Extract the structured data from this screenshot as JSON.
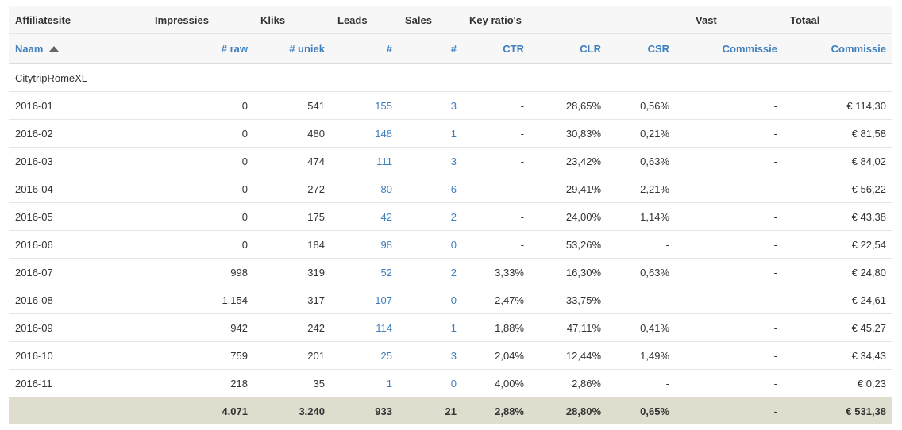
{
  "header_groups": [
    "Affiliatesite",
    "Impressies",
    "Kliks",
    "Leads",
    "Sales",
    "Key ratio's",
    "Vast",
    "Totaal"
  ],
  "columns": [
    "Naam",
    "# raw",
    "# uniek",
    "#",
    "#",
    "CTR",
    "CLR",
    "CSR",
    "Commissie",
    "Commissie"
  ],
  "group_name": "CitytripRomeXL",
  "rows": [
    [
      "2016-01",
      "0",
      "541",
      "155",
      "3",
      "-",
      "28,65%",
      "0,56%",
      "-",
      "€ 114,30"
    ],
    [
      "2016-02",
      "0",
      "480",
      "148",
      "1",
      "-",
      "30,83%",
      "0,21%",
      "-",
      "€ 81,58"
    ],
    [
      "2016-03",
      "0",
      "474",
      "111",
      "3",
      "-",
      "23,42%",
      "0,63%",
      "-",
      "€ 84,02"
    ],
    [
      "2016-04",
      "0",
      "272",
      "80",
      "6",
      "-",
      "29,41%",
      "2,21%",
      "-",
      "€ 56,22"
    ],
    [
      "2016-05",
      "0",
      "175",
      "42",
      "2",
      "-",
      "24,00%",
      "1,14%",
      "-",
      "€ 43,38"
    ],
    [
      "2016-06",
      "0",
      "184",
      "98",
      "0",
      "-",
      "53,26%",
      "-",
      "-",
      "€ 22,54"
    ],
    [
      "2016-07",
      "998",
      "319",
      "52",
      "2",
      "3,33%",
      "16,30%",
      "0,63%",
      "-",
      "€ 24,80"
    ],
    [
      "2016-08",
      "1.154",
      "317",
      "107",
      "0",
      "2,47%",
      "33,75%",
      "-",
      "-",
      "€ 24,61"
    ],
    [
      "2016-09",
      "942",
      "242",
      "114",
      "1",
      "1,88%",
      "47,11%",
      "0,41%",
      "-",
      "€ 45,27"
    ],
    [
      "2016-10",
      "759",
      "201",
      "25",
      "3",
      "2,04%",
      "12,44%",
      "1,49%",
      "-",
      "€ 34,43"
    ],
    [
      "2016-11",
      "218",
      "35",
      "1",
      "0",
      "4,00%",
      "2,86%",
      "-",
      "-",
      "€ 0,23"
    ]
  ],
  "totals": [
    "",
    "4.071",
    "3.240",
    "933",
    "21",
    "2,88%",
    "28,80%",
    "0,65%",
    "-",
    "€ 531,38"
  ],
  "colors": {
    "link": "#3f7fbf",
    "header_bg": "#f7f7f7",
    "total_bg": "#deddce"
  },
  "icons": {
    "sort": "sort-ascending-icon"
  }
}
